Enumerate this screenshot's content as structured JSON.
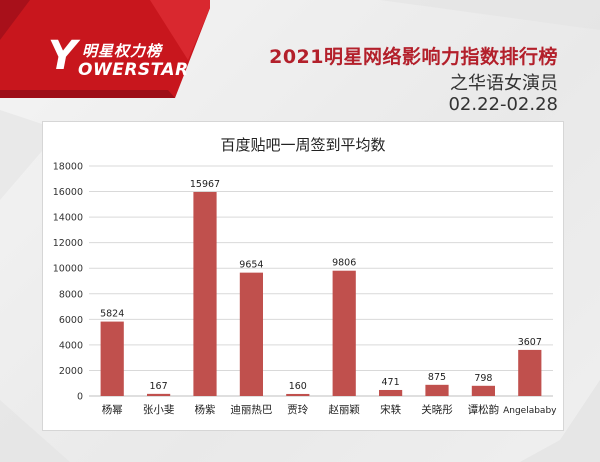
{
  "header": {
    "brand_cn": "明星权力榜",
    "brand_y": "Y",
    "brand_en": "OWERSTAR",
    "title": "2021明星网络影响力指数排行榜",
    "subtitle": "之华语女演员",
    "date_range": "02.22-02.28"
  },
  "colors": {
    "bar": "#c0504d",
    "brand_red": "#c8161d",
    "title_red": "#b3202b",
    "grid": "#d9d9d9"
  },
  "chart_data": {
    "type": "bar",
    "title": "百度贴吧一周签到平均数",
    "categories": [
      "杨幂",
      "张小斐",
      "杨紫",
      "迪丽热巴",
      "贾玲",
      "赵丽颖",
      "宋轶",
      "关晓彤",
      "谭松韵",
      "Angelababy"
    ],
    "values": [
      5824,
      167,
      15967,
      9654,
      160,
      9806,
      471,
      875,
      798,
      3607
    ],
    "ylim": [
      0,
      18000
    ],
    "yticks": [
      0,
      2000,
      4000,
      6000,
      8000,
      10000,
      12000,
      14000,
      16000,
      18000
    ],
    "grid": true,
    "data_labels": true,
    "legend": "none"
  }
}
